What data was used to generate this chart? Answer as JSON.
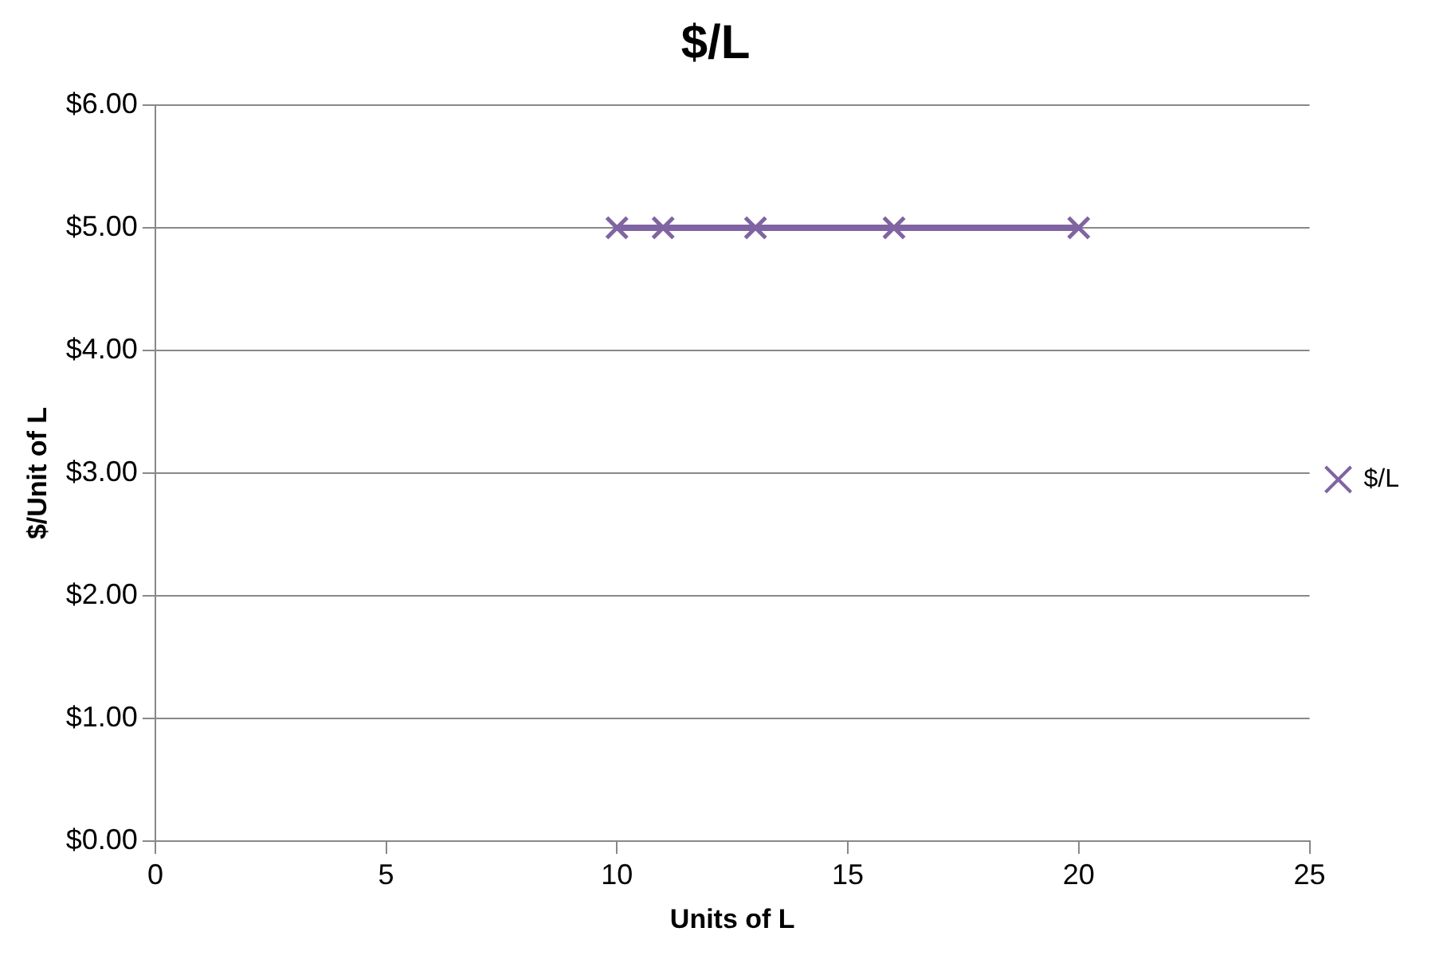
{
  "chart_data": {
    "type": "line",
    "title": "$/L",
    "xlabel": "Units of L",
    "ylabel": "$/Unit of L",
    "x": [
      10,
      11,
      13,
      16,
      20
    ],
    "series": [
      {
        "name": "$/L",
        "color": "#8064a2",
        "values": [
          5,
          5,
          5,
          5,
          5
        ]
      }
    ],
    "xlim": [
      0,
      25
    ],
    "xticks": [
      0,
      5,
      10,
      15,
      20,
      25
    ],
    "ylim": [
      0,
      6
    ],
    "yticks": [
      {
        "value": 0,
        "label": "$0.00"
      },
      {
        "value": 1,
        "label": "$1.00"
      },
      {
        "value": 2,
        "label": "$2.00"
      },
      {
        "value": 3,
        "label": "$3.00"
      },
      {
        "value": 4,
        "label": "$4.00"
      },
      {
        "value": 5,
        "label": "$5.00"
      },
      {
        "value": 6,
        "label": "$6.00"
      }
    ],
    "grid": "y",
    "legend": "right",
    "marker": "cross",
    "line_style": "solid"
  }
}
